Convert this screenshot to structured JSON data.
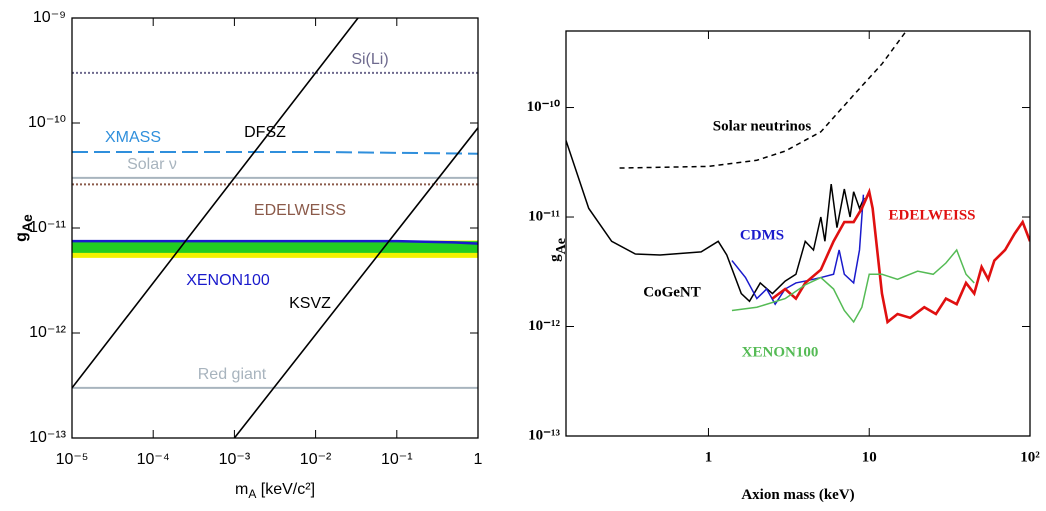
{
  "chart_data": [
    {
      "type": "line",
      "xscale": "log",
      "yscale": "log",
      "xlabel": "m",
      "xlabel_subscript": "A",
      "xlabel_suffix": " [keV/c²]",
      "ylabel": "g",
      "ylabel_subscript": "Ae",
      "xlim": [
        1e-05,
        1
      ],
      "ylim": [
        1e-13,
        1e-09
      ],
      "xticks": [
        {
          "value": 1e-05,
          "label": "10⁻⁵"
        },
        {
          "value": 0.0001,
          "label": "10⁻⁴"
        },
        {
          "value": 0.001,
          "label": "10⁻³"
        },
        {
          "value": 0.01,
          "label": "10⁻²"
        },
        {
          "value": 0.1,
          "label": "10⁻¹"
        },
        1
      ],
      "yticks": [
        {
          "value": 1e-13,
          "label": "10⁻¹³"
        },
        {
          "value": 1e-12,
          "label": "10⁻¹²"
        },
        {
          "value": 1e-11,
          "label": "10⁻¹¹"
        },
        {
          "value": 1e-10,
          "label": "10⁻¹⁰"
        },
        {
          "value": 1e-09,
          "label": "10⁻⁹"
        }
      ],
      "bands": [
        {
          "color": "#f2f200",
          "x": [
            1e-05,
            1
          ],
          "upper": [
            7.6e-12,
            7.6e-12
          ],
          "lower": [
            5.2e-12,
            5.2e-12
          ]
        },
        {
          "color": "#22cc22",
          "x": [
            1e-05,
            1
          ],
          "upper": [
            7.5e-12,
            7.5e-12
          ],
          "lower": [
            5.8e-12,
            5.8e-12
          ]
        }
      ],
      "series": [
        {
          "name": "Si(Li)",
          "color": "#6e6a8e",
          "style": "dotted",
          "x": [
            1e-05,
            1
          ],
          "values": [
            3e-10,
            3e-10
          ]
        },
        {
          "name": "XMASS",
          "color": "#2f8fdc",
          "style": "longdash",
          "x": [
            1e-05,
            0.01,
            1
          ],
          "values": [
            5.3e-11,
            5.3e-11,
            5.1e-11
          ]
        },
        {
          "name": "Solar ν",
          "color": "#a8b4be",
          "style": "solid",
          "x": [
            1e-05,
            1
          ],
          "values": [
            3e-11,
            3e-11
          ]
        },
        {
          "name": "EDELWEISS",
          "color": "#8b5a4a",
          "style": "dotted",
          "x": [
            1e-05,
            1
          ],
          "values": [
            2.6e-11,
            2.6e-11
          ]
        },
        {
          "name": "XENON100",
          "color": "#1a1acc",
          "style": "solid",
          "x": [
            1e-05,
            0.1,
            0.5,
            1
          ],
          "values": [
            7.5e-12,
            7.5e-12,
            7.3e-12,
            7.1e-12
          ]
        },
        {
          "name": "Red giant",
          "color": "#a8b4be",
          "style": "solid",
          "x": [
            1e-05,
            1
          ],
          "values": [
            3e-13,
            3e-13
          ]
        },
        {
          "name": "DFSZ",
          "color": "#000000",
          "style": "solid",
          "x": [
            1e-05,
            0.0333
          ],
          "values": [
            3e-13,
            1e-09
          ]
        },
        {
          "name": "KSVZ",
          "color": "#000000",
          "style": "solid",
          "x": [
            0.001,
            1
          ],
          "values": [
            1e-13,
            9e-11
          ]
        }
      ]
    },
    {
      "type": "line",
      "xscale": "log",
      "yscale": "log",
      "xlabel": "Axion mass (keV)",
      "ylabel": "g",
      "ylabel_subscript": "Ae",
      "xlim": [
        0.13,
        100
      ],
      "ylim": [
        1e-13,
        5e-10
      ],
      "xticks": [
        1,
        10,
        {
          "value": 100,
          "label": "10²"
        }
      ],
      "yticks": [
        {
          "value": 1e-13,
          "label": "10⁻¹³"
        },
        {
          "value": 1e-12,
          "label": "10⁻¹²"
        },
        {
          "value": 1e-11,
          "label": "10⁻¹¹"
        },
        {
          "value": 1e-10,
          "label": "10⁻¹⁰"
        }
      ],
      "series": [
        {
          "name": "Solar neutrinos",
          "color": "#000000",
          "style": "dashed",
          "x": [
            0.28,
            1,
            2,
            3,
            5,
            8,
            12,
            17
          ],
          "values": [
            2.8e-11,
            2.9e-11,
            3.3e-11,
            4e-11,
            6e-11,
            1.3e-10,
            2.5e-10,
            5e-10
          ]
        },
        {
          "name": "CoGeNT",
          "color": "#000000",
          "style": "solid",
          "x": [
            0.13,
            0.18,
            0.25,
            0.35,
            0.5,
            0.9,
            1.15,
            1.3,
            1.6,
            1.8,
            2.1,
            2.5,
            3,
            3.5,
            4,
            4.5,
            5,
            5.3,
            5.8,
            6.3,
            7,
            7.6,
            8,
            8.7,
            9.3
          ],
          "values": [
            5e-11,
            1.2e-11,
            6e-12,
            4.6e-12,
            4.5e-12,
            4.8e-12,
            6e-12,
            4.5e-12,
            2e-12,
            1.7e-12,
            2.5e-12,
            2e-12,
            2.6e-12,
            3e-12,
            6e-12,
            5e-12,
            1e-11,
            6e-12,
            2e-11,
            8e-12,
            1.8e-11,
            1e-11,
            1.7e-11,
            1.2e-11,
            1.5e-11
          ]
        },
        {
          "name": "CDMS",
          "color": "#1a1acc",
          "style": "solid",
          "x": [
            1.4,
            1.7,
            2,
            2.3,
            2.6,
            3,
            3.5,
            4,
            5,
            6,
            6.5,
            7,
            8,
            8.7,
            9.2
          ],
          "values": [
            4e-12,
            2.8e-12,
            1.8e-12,
            2.2e-12,
            1.6e-12,
            2.2e-12,
            2.5e-12,
            2.6e-12,
            2.8e-12,
            3e-12,
            5e-12,
            3e-12,
            2.5e-12,
            5e-12,
            1.6e-11
          ]
        },
        {
          "name": "EDELWEISS",
          "color": "#e01010",
          "style": "solid",
          "x": [
            2.5,
            3,
            3.5,
            4,
            5,
            6,
            7,
            8,
            9,
            10,
            10.5,
            12,
            13,
            15,
            18,
            22,
            26,
            30,
            35,
            40,
            45,
            50,
            55,
            60,
            70,
            80,
            90,
            100
          ],
          "values": [
            1.8e-12,
            2.2e-12,
            1.8e-12,
            2.5e-12,
            3.3e-12,
            6e-12,
            9e-12,
            9e-12,
            1.2e-11,
            1.7e-11,
            1.2e-11,
            2e-12,
            1.1e-12,
            1.3e-12,
            1.2e-12,
            1.5e-12,
            1.3e-12,
            1.8e-12,
            1.6e-12,
            2.5e-12,
            2e-12,
            3.5e-12,
            2.7e-12,
            4e-12,
            5e-12,
            7e-12,
            9e-12,
            6e-12
          ]
        },
        {
          "name": "XENON100",
          "color": "#55bb55",
          "style": "solid",
          "x": [
            1.4,
            2,
            3,
            4,
            5,
            6,
            7,
            8,
            9,
            10,
            12,
            15,
            20,
            25,
            30,
            35,
            40,
            45
          ],
          "values": [
            1.4e-12,
            1.5e-12,
            1.8e-12,
            2.4e-12,
            2.8e-12,
            2.2e-12,
            1.4e-12,
            1.1e-12,
            1.5e-12,
            3e-12,
            3e-12,
            2.7e-12,
            3.2e-12,
            3e-12,
            3.8e-12,
            5e-12,
            3e-12,
            2.5e-12
          ]
        }
      ]
    }
  ]
}
